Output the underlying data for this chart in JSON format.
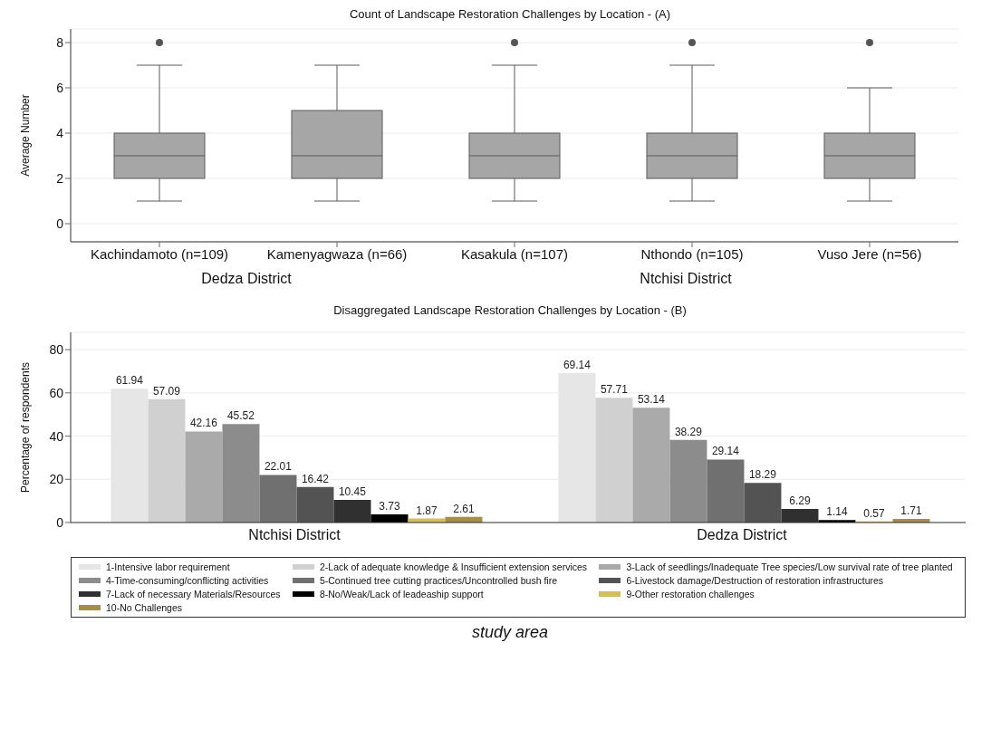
{
  "chart_data": [
    {
      "type": "box",
      "title": "Count of Landscape Restoration Challenges by Location - (A)",
      "ylabel": "Average Number",
      "categories": [
        "Kachindamoto (n=109)",
        "Kamenyagwaza (n=66)",
        "Kasakula (n=107)",
        "Nthondo (n=105)",
        "Vuso Jere (n=56)"
      ],
      "color": "#a6a6a6",
      "boxes": [
        {
          "low": 1,
          "q1": 2,
          "median": 3,
          "q3": 4,
          "high": 7,
          "outliers": [
            8
          ]
        },
        {
          "low": 1,
          "q1": 2,
          "median": 3,
          "q3": 5,
          "high": 7
        },
        {
          "low": 1,
          "q1": 2,
          "median": 3,
          "q3": 4,
          "high": 7,
          "outliers": [
            8
          ]
        },
        {
          "low": 1,
          "q1": 2,
          "median": 3,
          "q3": 4,
          "high": 7,
          "outliers": [
            8
          ]
        },
        {
          "low": 1,
          "q1": 2,
          "median": 3,
          "q3": 4,
          "high": 6,
          "outliers": [
            8
          ]
        }
      ],
      "ylim": [
        -0.8,
        8.6
      ],
      "yticks": [
        0,
        2,
        4,
        6,
        8
      ],
      "grid": "y",
      "annotations": [
        "Dedza District",
        "Ntchisi District"
      ]
    },
    {
      "type": "bar",
      "title": "Disaggregated Landscape Restoration Challenges by Location - (B)",
      "ylabel": "Percentage of respondents",
      "categories": [
        "Ntchisi District",
        "Dedza District"
      ],
      "series": [
        {
          "name": "1-Intensive labor requirement",
          "color": "#e6e6e6",
          "values": [
            61.94,
            69.14
          ]
        },
        {
          "name": "2-Lack of adequate knowledge & Insufficient extension services",
          "color": "#d0d0d0",
          "values": [
            57.09,
            57.71
          ]
        },
        {
          "name": "3-Lack of seedlings/Inadequate Tree species/Low survival rate of tree planted",
          "color": "#aaaaaa",
          "values": [
            42.16,
            53.14
          ]
        },
        {
          "name": "4-Time-consuming/conflicting activities",
          "color": "#8c8c8c",
          "values": [
            45.52,
            38.29
          ]
        },
        {
          "name": "5-Continued tree cutting practices/Uncontrolled bush fire",
          "color": "#707070",
          "values": [
            22.01,
            29.14
          ]
        },
        {
          "name": "6-Livestock damage/Destruction of restoration infrastructures",
          "color": "#535353",
          "values": [
            16.42,
            18.29
          ]
        },
        {
          "name": "7-Lack of necessary Materials/Resources",
          "color": "#303030",
          "values": [
            10.45,
            6.29
          ]
        },
        {
          "name": "8-No/Weak/Lack of leadeaship support",
          "color": "#000000",
          "values": [
            3.73,
            1.14
          ]
        },
        {
          "name": "9-Other restoration challenges",
          "color": "#d4bd60",
          "values": [
            1.87,
            0.57
          ]
        },
        {
          "name": "10-No Challenges",
          "color": "#a38f48",
          "values": [
            2.61,
            1.71
          ]
        }
      ],
      "ylim": [
        0,
        88
      ],
      "yticks": [
        0,
        20,
        40,
        60,
        80
      ],
      "grid": "y",
      "data_labels": true,
      "legend": "bottom",
      "annotations": [
        "study area"
      ]
    }
  ]
}
